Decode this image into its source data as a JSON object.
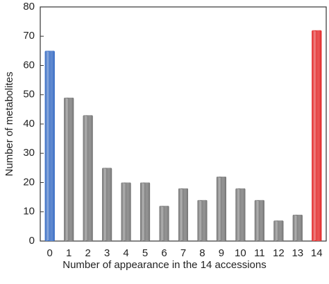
{
  "chart_data": {
    "type": "bar",
    "x_label": "Number of appearance in the 14 accessions",
    "y_label": "Number of metabolites",
    "categories": [
      "0",
      "1",
      "2",
      "3",
      "4",
      "5",
      "6",
      "7",
      "8",
      "9",
      "10",
      "11",
      "12",
      "13",
      "14"
    ],
    "values": [
      65,
      49,
      43,
      25,
      20,
      20,
      12,
      18,
      14,
      22,
      18,
      14,
      7,
      9,
      72
    ],
    "colors": [
      "#2a62c0",
      "#6e6e6e",
      "#6e6e6e",
      "#6e6e6e",
      "#6e6e6e",
      "#6e6e6e",
      "#6e6e6e",
      "#6e6e6e",
      "#6e6e6e",
      "#6e6e6e",
      "#6e6e6e",
      "#6e6e6e",
      "#6e6e6e",
      "#6e6e6e",
      "#e01a1a"
    ],
    "ylim": [
      0,
      80
    ],
    "yticks": [
      0,
      10,
      20,
      30,
      40,
      50,
      60,
      70,
      80
    ],
    "grid": false
  }
}
